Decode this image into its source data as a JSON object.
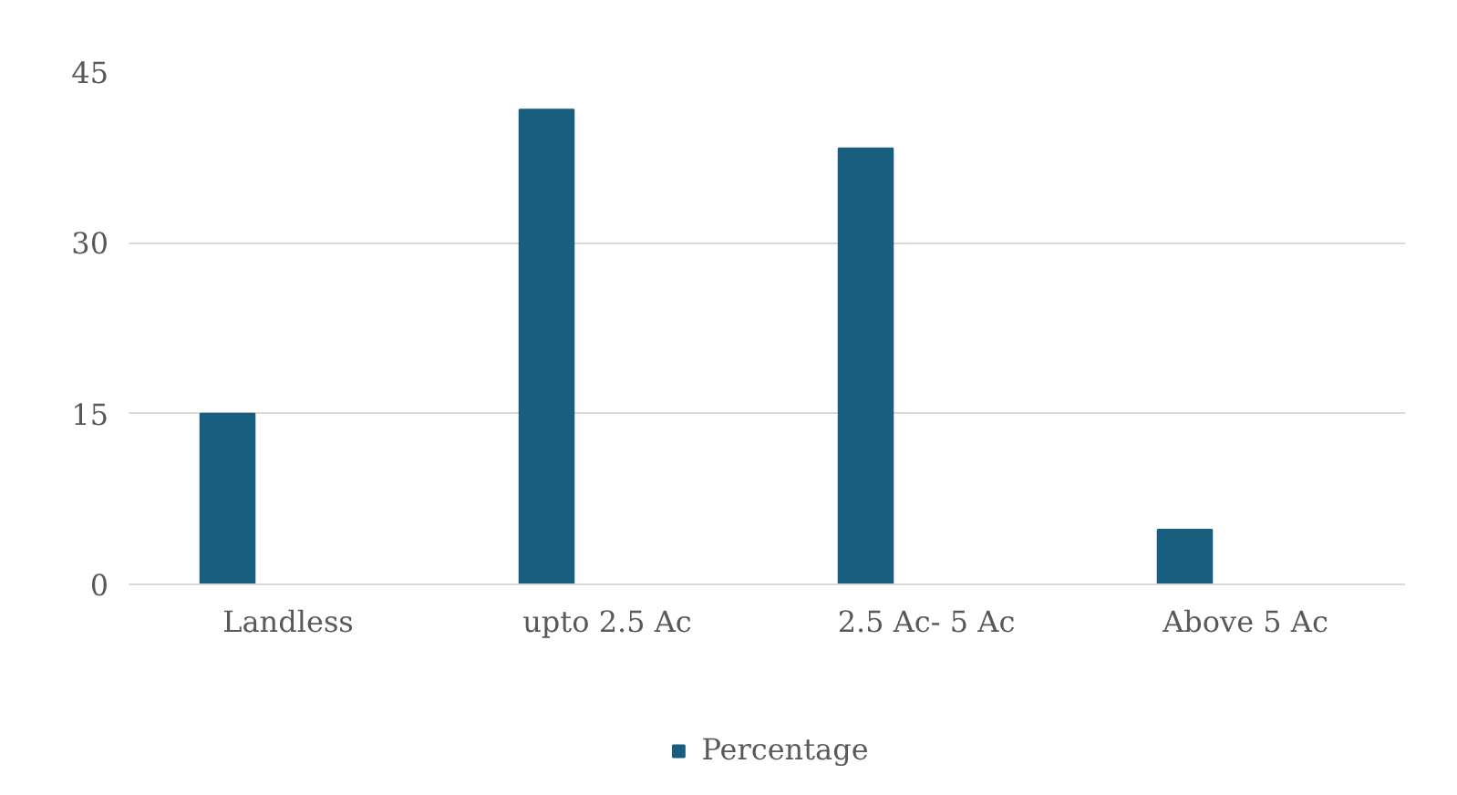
{
  "chart_data": {
    "type": "bar",
    "categories": [
      "Landless",
      "upto 2.5 Ac",
      "2.5 Ac- 5 Ac",
      "Above 5 Ac"
    ],
    "series": [
      {
        "name": "Percentage",
        "color": "#175e7f",
        "values": [
          15,
          41.7,
          38.3,
          4.8
        ]
      }
    ],
    "ylim": [
      0,
      45
    ],
    "yticks": [
      0,
      15,
      30,
      45
    ],
    "grid": "y",
    "legend": "bottom"
  }
}
